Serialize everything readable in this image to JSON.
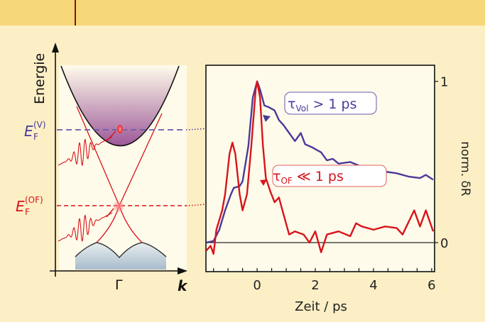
{
  "diagram": {
    "energy_label": "Energie",
    "fermi_v_main": "E",
    "fermi_v_sub": "F",
    "fermi_v_sup": "(V)",
    "fermi_of_main": "E",
    "fermi_of_sub": "F",
    "fermi_of_sup": "(OF)",
    "gamma_label": "Γ",
    "k_label": "k",
    "colors": {
      "volume": "#4a3a9a",
      "surface": "#d8141c",
      "background": "#fcefc6",
      "panel": "#fffbea"
    }
  },
  "chart_data": {
    "type": "line",
    "xlabel": "Zeit / ps",
    "ylabel": "norm. δR",
    "xlim": [
      -1.76,
      6.1
    ],
    "ylim": [
      -0.18,
      1.1
    ],
    "xticks": [
      0,
      2,
      4,
      6
    ],
    "xtick_labels": [
      "0",
      "2",
      "4",
      "6"
    ],
    "yticks": [
      0,
      1
    ],
    "ytick_labels": [
      "0",
      "1"
    ],
    "annotations": [
      {
        "main": "τ",
        "sub": "Vol",
        "rest": " > 1 ps",
        "series": "Vol"
      },
      {
        "main": "τ",
        "sub": "OF",
        "rest": " ≪ 1 ps",
        "series": "OF"
      }
    ],
    "series": [
      {
        "name": "Vol",
        "color": "#4a3a9a",
        "x": [
          -1.75,
          -1.5,
          -1.3,
          -1.1,
          -0.9,
          -0.8,
          -0.6,
          -0.5,
          -0.3,
          -0.15,
          0,
          0.1,
          0.25,
          0.4,
          0.6,
          0.75,
          0.9,
          1.1,
          1.3,
          1.5,
          1.65,
          1.9,
          2.2,
          2.4,
          2.6,
          2.8,
          3.2,
          3.6,
          4.0,
          4.4,
          4.8,
          5.2,
          5.6,
          5.8,
          6.05
        ],
        "y": [
          0,
          0.01,
          0.08,
          0.2,
          0.3,
          0.34,
          0.35,
          0.38,
          0.6,
          0.9,
          1.0,
          0.95,
          0.85,
          0.84,
          0.82,
          0.76,
          0.73,
          0.68,
          0.63,
          0.68,
          0.61,
          0.59,
          0.56,
          0.51,
          0.52,
          0.49,
          0.5,
          0.47,
          0.46,
          0.44,
          0.43,
          0.41,
          0.4,
          0.42,
          0.39
        ]
      },
      {
        "name": "OF",
        "color": "#d8141c",
        "x": [
          -1.75,
          -1.6,
          -1.5,
          -1.4,
          -1.2,
          -1.1,
          -0.95,
          -0.85,
          -0.75,
          -0.6,
          -0.5,
          -0.35,
          -0.2,
          -0.05,
          0,
          0.1,
          0.2,
          0.3,
          0.45,
          0.6,
          0.75,
          0.9,
          1.1,
          1.3,
          1.6,
          1.8,
          2.0,
          2.2,
          2.4,
          2.8,
          3.2,
          3.4,
          3.6,
          4.0,
          4.4,
          4.8,
          5.0,
          5.4,
          5.6,
          5.8,
          6.05
        ],
        "y": [
          -0.05,
          -0.02,
          -0.07,
          0.08,
          0.2,
          0.3,
          0.55,
          0.62,
          0.55,
          0.3,
          0.2,
          0.3,
          0.6,
          0.95,
          1.0,
          0.9,
          0.6,
          0.4,
          0.32,
          0.25,
          0.28,
          0.18,
          0.05,
          0.07,
          0.05,
          0.0,
          0.07,
          -0.06,
          0.05,
          0.07,
          0.04,
          0.12,
          0.1,
          0.08,
          0.1,
          0.09,
          0.05,
          0.2,
          0.1,
          0.2,
          0.07
        ]
      }
    ]
  }
}
